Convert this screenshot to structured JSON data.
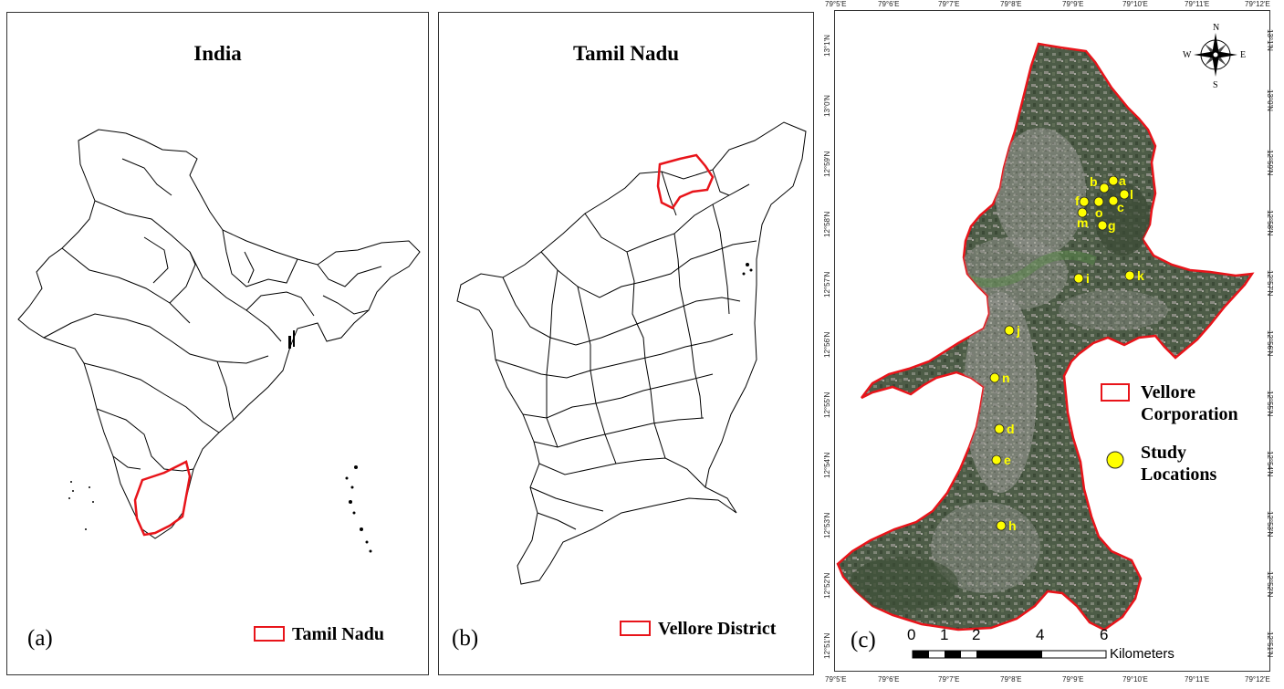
{
  "panel_a": {
    "title": "India",
    "label": "(a)",
    "legend": "Tamil Nadu"
  },
  "panel_b": {
    "title": "Tamil Nadu",
    "label": "(b)",
    "legend": "Vellore District"
  },
  "panel_c": {
    "label": "(c)",
    "legend_boundary": "Vellore Corporation",
    "legend_points": "Study Locations",
    "compass": {
      "n": "N",
      "s": "S",
      "e": "E",
      "w": "W"
    },
    "scale": {
      "ticks": [
        "0",
        "1",
        "2",
        "4",
        "6"
      ],
      "unit": "Kilometers"
    },
    "lon_labels": [
      "79°5'E",
      "79°6'E",
      "79°7'E",
      "79°8'E",
      "79°9'E",
      "79°10'E",
      "79°11'E",
      "79°12'E"
    ],
    "lat_labels": [
      "13°1'N",
      "13°0'N",
      "12°59'N",
      "12°58'N",
      "12°57'N",
      "12°56'N",
      "12°55'N",
      "12°54'N",
      "12°53'N",
      "12°52'N",
      "12°51'N"
    ],
    "locations": [
      "a",
      "b",
      "c",
      "d",
      "e",
      "f",
      "g",
      "h",
      "i",
      "j",
      "k",
      "l",
      "m",
      "n",
      "o"
    ]
  },
  "colors": {
    "boundary": "#e8141a",
    "points": "#ffff00",
    "satellite": "#4b5a45"
  }
}
